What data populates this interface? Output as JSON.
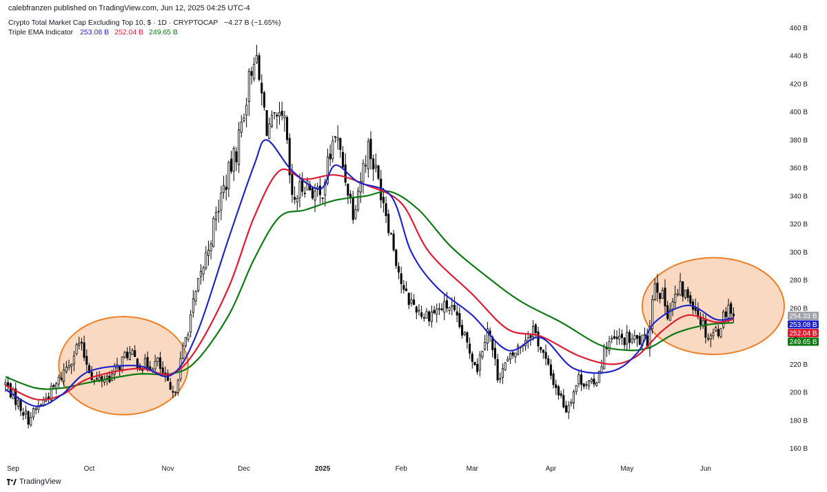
{
  "header": {
    "publisher_line": "calebfranzen published on TradingView.com, Jun 12, 2025 04:25 UTC-4"
  },
  "legend": {
    "symbol_line": "Crypto Total Market Cap Excluding Top 10, $ · 1D · CRYPTOCAP",
    "change": "−4.27 B (−1.65%)",
    "indicator_name": "Triple EMA Indicator",
    "ema_values": [
      "253.08 B",
      "252.04 B",
      "249.65 B"
    ]
  },
  "footer": {
    "brand": "TradingView"
  },
  "colors": {
    "candle_up": "#ffffff",
    "candle_down": "#000000",
    "candle_outline": "#000000",
    "ema_fast": "#1f24c8",
    "ema_mid": "#e0192f",
    "ema_slow": "#0b7a10",
    "highlight_fill": "#f9d9c2",
    "highlight_stroke": "#ef7d22",
    "last_price_tag": "#9ea2a8"
  },
  "chart_data": {
    "type": "candlestick",
    "title": "Crypto Total Market Cap Excluding Top 10, $ · 1D · CRYPTOCAP",
    "y_unit": "B",
    "y_axis_side": "right",
    "ylim": [
      150,
      470
    ],
    "y_ticks": [
      "460 B",
      "440 B",
      "420 B",
      "400 B",
      "380 B",
      "360 B",
      "340 B",
      "320 B",
      "300 B",
      "280 B",
      "260 B",
      "240 B",
      "220 B",
      "200 B",
      "180 B",
      "160 B"
    ],
    "x_ticks": [
      {
        "label": "Sep",
        "date": "2024-09-01"
      },
      {
        "label": "Oct",
        "date": "2024-10-01"
      },
      {
        "label": "Nov",
        "date": "2024-11-01"
      },
      {
        "label": "Dec",
        "date": "2024-12-01"
      },
      {
        "label": "2025",
        "date": "2025-01-01"
      },
      {
        "label": "Feb",
        "date": "2025-02-01"
      },
      {
        "label": "Mar",
        "date": "2025-03-01"
      },
      {
        "label": "Apr",
        "date": "2025-04-01"
      },
      {
        "label": "May",
        "date": "2025-05-01"
      },
      {
        "label": "Jun",
        "date": "2025-06-01"
      }
    ],
    "date_range": [
      "2024-08-29",
      "2025-06-12"
    ],
    "xlim": [
      "2024-08-29",
      "2025-07-02"
    ],
    "close_path": [
      {
        "date": "2024-08-29",
        "close": 206
      },
      {
        "date": "2024-09-07",
        "close": 181
      },
      {
        "date": "2024-09-18",
        "close": 205
      },
      {
        "date": "2024-09-27",
        "close": 235
      },
      {
        "date": "2024-10-03",
        "close": 208
      },
      {
        "date": "2024-10-10",
        "close": 212
      },
      {
        "date": "2024-10-16",
        "close": 228
      },
      {
        "date": "2024-10-22",
        "close": 219
      },
      {
        "date": "2024-10-28",
        "close": 221
      },
      {
        "date": "2024-11-03",
        "close": 196
      },
      {
        "date": "2024-11-10",
        "close": 255
      },
      {
        "date": "2024-11-15",
        "close": 290
      },
      {
        "date": "2024-11-22",
        "close": 340
      },
      {
        "date": "2024-11-28",
        "close": 372
      },
      {
        "date": "2024-12-05",
        "close": 442
      },
      {
        "date": "2024-12-10",
        "close": 390
      },
      {
        "date": "2024-12-17",
        "close": 392
      },
      {
        "date": "2024-12-20",
        "close": 335
      },
      {
        "date": "2024-12-25",
        "close": 350
      },
      {
        "date": "2024-12-31",
        "close": 338
      },
      {
        "date": "2025-01-06",
        "close": 385
      },
      {
        "date": "2025-01-13",
        "close": 330
      },
      {
        "date": "2025-01-19",
        "close": 376
      },
      {
        "date": "2025-01-25",
        "close": 338
      },
      {
        "date": "2025-02-02",
        "close": 270
      },
      {
        "date": "2025-02-10",
        "close": 255
      },
      {
        "date": "2025-02-20",
        "close": 262
      },
      {
        "date": "2025-03-03",
        "close": 218
      },
      {
        "date": "2025-03-07",
        "close": 248
      },
      {
        "date": "2025-03-11",
        "close": 212
      },
      {
        "date": "2025-03-19",
        "close": 231
      },
      {
        "date": "2025-03-25",
        "close": 246
      },
      {
        "date": "2025-04-01",
        "close": 212
      },
      {
        "date": "2025-04-07",
        "close": 188
      },
      {
        "date": "2025-04-12",
        "close": 210
      },
      {
        "date": "2025-04-18",
        "close": 204
      },
      {
        "date": "2025-04-23",
        "close": 235
      },
      {
        "date": "2025-04-30",
        "close": 238
      },
      {
        "date": "2025-05-09",
        "close": 236
      },
      {
        "date": "2025-05-12",
        "close": 281
      },
      {
        "date": "2025-05-17",
        "close": 258
      },
      {
        "date": "2025-05-22",
        "close": 273
      },
      {
        "date": "2025-05-27",
        "close": 265
      },
      {
        "date": "2025-06-02",
        "close": 240
      },
      {
        "date": "2025-06-06",
        "close": 245
      },
      {
        "date": "2025-06-10",
        "close": 263
      },
      {
        "date": "2025-06-12",
        "close": 254.33
      }
    ],
    "ema_series": [
      {
        "name": "EMA fast",
        "color": "#1f24c8",
        "last": 253.08,
        "points": [
          [
            "2024-08-29",
            202
          ],
          [
            "2024-09-10",
            190
          ],
          [
            "2024-09-20",
            198
          ],
          [
            "2024-10-01",
            215
          ],
          [
            "2024-10-20",
            219
          ],
          [
            "2024-11-02",
            212
          ],
          [
            "2024-11-12",
            240
          ],
          [
            "2024-11-25",
            310
          ],
          [
            "2024-12-05",
            362
          ],
          [
            "2024-12-10",
            380
          ],
          [
            "2024-12-20",
            358
          ],
          [
            "2024-12-31",
            345
          ],
          [
            "2025-01-06",
            362
          ],
          [
            "2025-01-15",
            350
          ],
          [
            "2025-01-28",
            340
          ],
          [
            "2025-02-05",
            300
          ],
          [
            "2025-02-15",
            275
          ],
          [
            "2025-03-01",
            255
          ],
          [
            "2025-03-15",
            230
          ],
          [
            "2025-03-28",
            239
          ],
          [
            "2025-04-10",
            217
          ],
          [
            "2025-04-25",
            215
          ],
          [
            "2025-05-05",
            228
          ],
          [
            "2025-05-12",
            250
          ],
          [
            "2025-05-25",
            262
          ],
          [
            "2025-06-05",
            252
          ],
          [
            "2025-06-12",
            253.08
          ]
        ]
      },
      {
        "name": "EMA mid",
        "color": "#e0192f",
        "last": 252.04,
        "points": [
          [
            "2024-08-29",
            205
          ],
          [
            "2024-09-10",
            195
          ],
          [
            "2024-09-20",
            198
          ],
          [
            "2024-10-01",
            210
          ],
          [
            "2024-10-20",
            217
          ],
          [
            "2024-11-02",
            213
          ],
          [
            "2024-11-12",
            230
          ],
          [
            "2024-11-25",
            275
          ],
          [
            "2024-12-05",
            325
          ],
          [
            "2024-12-15",
            358
          ],
          [
            "2024-12-25",
            352
          ],
          [
            "2025-01-06",
            355
          ],
          [
            "2025-01-18",
            348
          ],
          [
            "2025-02-01",
            335
          ],
          [
            "2025-02-12",
            300
          ],
          [
            "2025-03-01",
            270
          ],
          [
            "2025-03-15",
            245
          ],
          [
            "2025-03-28",
            240
          ],
          [
            "2025-04-12",
            226
          ],
          [
            "2025-04-25",
            220
          ],
          [
            "2025-05-05",
            226
          ],
          [
            "2025-05-15",
            244
          ],
          [
            "2025-05-25",
            255
          ],
          [
            "2025-06-05",
            250
          ],
          [
            "2025-06-12",
            252.04
          ]
        ]
      },
      {
        "name": "EMA slow",
        "color": "#0b7a10",
        "last": 249.65,
        "points": [
          [
            "2024-08-29",
            211
          ],
          [
            "2024-09-10",
            203
          ],
          [
            "2024-09-20",
            203
          ],
          [
            "2024-10-01",
            207
          ],
          [
            "2024-10-20",
            213
          ],
          [
            "2024-11-02",
            213
          ],
          [
            "2024-11-12",
            222
          ],
          [
            "2024-11-25",
            255
          ],
          [
            "2024-12-05",
            295
          ],
          [
            "2024-12-15",
            325
          ],
          [
            "2024-12-25",
            330
          ],
          [
            "2025-01-06",
            337
          ],
          [
            "2025-01-18",
            340
          ],
          [
            "2025-01-28",
            343
          ],
          [
            "2025-02-08",
            330
          ],
          [
            "2025-02-20",
            305
          ],
          [
            "2025-03-05",
            285
          ],
          [
            "2025-03-20",
            265
          ],
          [
            "2025-04-05",
            250
          ],
          [
            "2025-04-20",
            234
          ],
          [
            "2025-05-01",
            230
          ],
          [
            "2025-05-10",
            232
          ],
          [
            "2025-05-20",
            242
          ],
          [
            "2025-06-01",
            248
          ],
          [
            "2025-06-12",
            249.65
          ]
        ]
      }
    ],
    "annotations": [
      {
        "type": "ellipse",
        "from_date": "2024-09-19",
        "to_date": "2024-11-09",
        "ymin": 184,
        "ymax": 254
      },
      {
        "type": "ellipse",
        "from_date": "2025-05-07",
        "to_date": "2025-07-02",
        "ymin": 227,
        "ymax": 296
      }
    ],
    "price_tags": [
      {
        "value": 254.33,
        "label": "254.33 B",
        "color": "#9ea2a8"
      },
      {
        "value": 253.08,
        "label": "253.08 B",
        "color": "#1f24c8"
      },
      {
        "value": 252.04,
        "label": "252.04 B",
        "color": "#e0192f"
      },
      {
        "value": 249.65,
        "label": "249.65 B",
        "color": "#0b7a10"
      }
    ],
    "grid": false,
    "legend_position": "top-left"
  }
}
